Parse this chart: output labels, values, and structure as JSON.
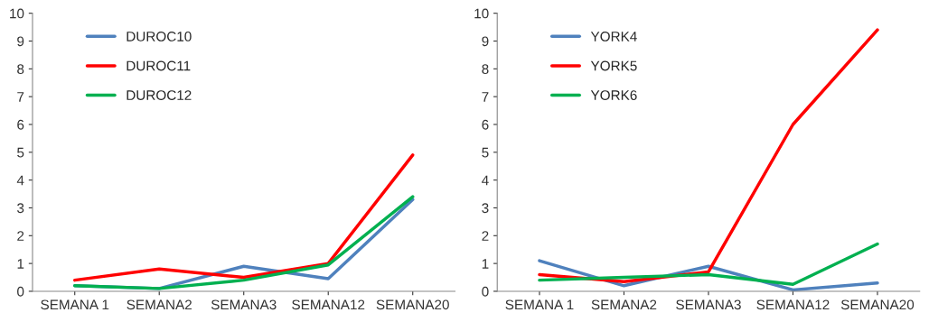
{
  "chart_data": [
    {
      "type": "line",
      "categories": [
        "SEMANA 1",
        "SEMANA2",
        "SEMANA3",
        "SEMANA12",
        "SEMANA20"
      ],
      "ylim": [
        0,
        10
      ],
      "yticks": [
        0,
        1,
        2,
        3,
        4,
        5,
        6,
        7,
        8,
        9,
        10
      ],
      "legend": "top left",
      "grid": false,
      "series": [
        {
          "name": "DUROC10",
          "color": "#4f81bd",
          "values": [
            0.2,
            0.1,
            0.9,
            0.45,
            3.3
          ]
        },
        {
          "name": "DUROC11",
          "color": "#ff0000",
          "values": [
            0.4,
            0.8,
            0.5,
            1.0,
            4.9
          ]
        },
        {
          "name": "DUROC12",
          "color": "#00b050",
          "values": [
            0.2,
            0.1,
            0.4,
            0.95,
            3.4
          ]
        }
      ]
    },
    {
      "type": "line",
      "categories": [
        "SEMANA 1",
        "SEMANA2",
        "SEMANA3",
        "SEMANA12",
        "SEMANA20"
      ],
      "ylim": [
        0,
        10
      ],
      "yticks": [
        0,
        1,
        2,
        3,
        4,
        5,
        6,
        7,
        8,
        9,
        10
      ],
      "legend": "top left",
      "grid": false,
      "series": [
        {
          "name": "YORK4",
          "color": "#4f81bd",
          "values": [
            1.1,
            0.2,
            0.9,
            0.05,
            0.3
          ]
        },
        {
          "name": "YORK5",
          "color": "#ff0000",
          "values": [
            0.6,
            0.35,
            0.7,
            6.0,
            9.4
          ]
        },
        {
          "name": "YORK6",
          "color": "#00b050",
          "values": [
            0.4,
            0.5,
            0.6,
            0.25,
            1.7
          ]
        }
      ]
    }
  ]
}
